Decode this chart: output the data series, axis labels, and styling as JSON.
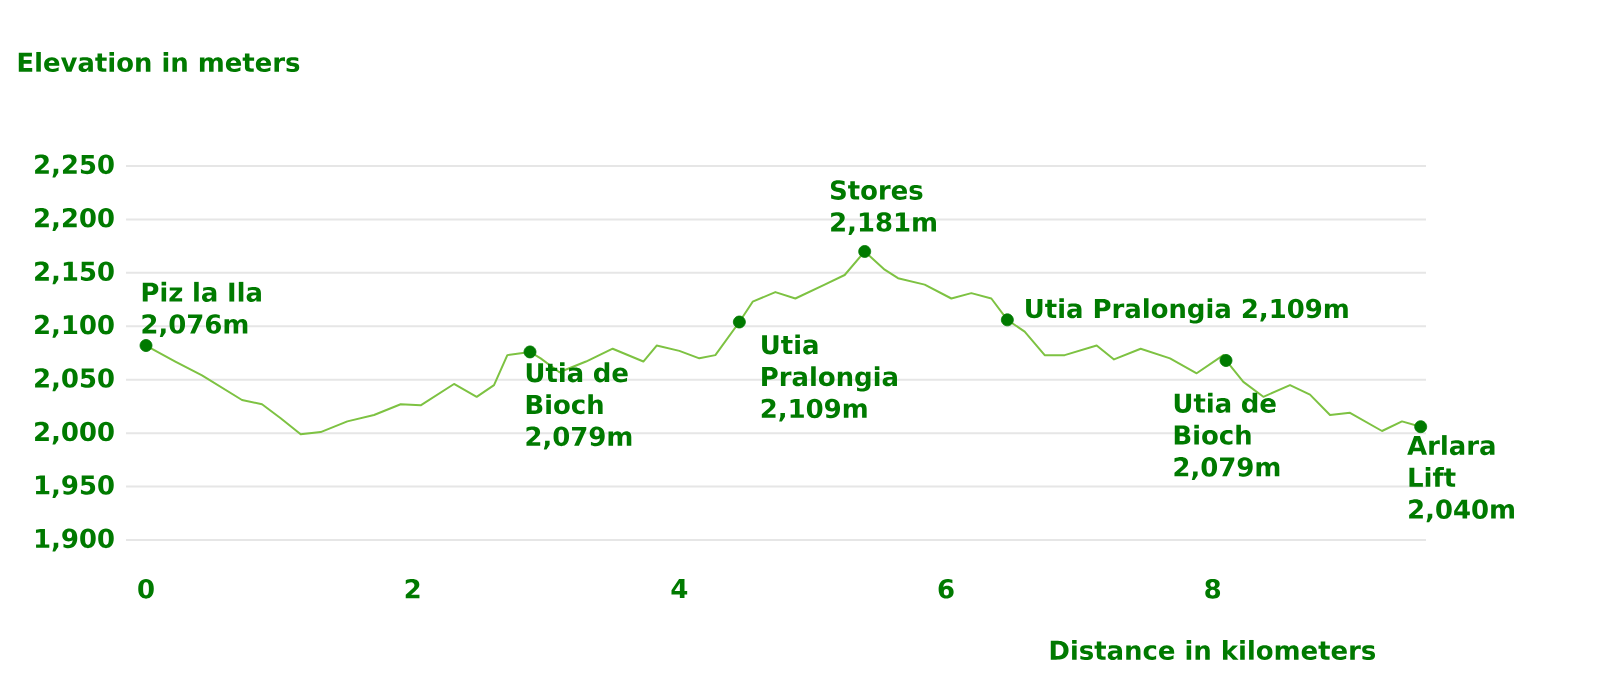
{
  "chart_data": {
    "type": "line",
    "xlabel": "Distance in kilometers",
    "ylabel": "Elevation in meters",
    "xlim": [
      -0.15,
      9.6
    ],
    "ylim": [
      1900,
      2250
    ],
    "xticks": [
      0,
      2,
      4,
      6,
      8
    ],
    "yticks": [
      {
        "value": 1900,
        "label": "1,900"
      },
      {
        "value": 1950,
        "label": "1,950"
      },
      {
        "value": 2000,
        "label": "2,000"
      },
      {
        "value": 2050,
        "label": "2,050"
      },
      {
        "value": 2100,
        "label": "2,100"
      },
      {
        "value": 2150,
        "label": "2,150"
      },
      {
        "value": 2200,
        "label": "2,200"
      },
      {
        "value": 2250,
        "label": "2,250"
      }
    ],
    "grid": "y",
    "series": [
      {
        "color": "#7dc242",
        "x": [
          0,
          0.22,
          0.42,
          0.72,
          0.87,
          1.01,
          1.16,
          1.31,
          1.51,
          1.71,
          1.91,
          2.06,
          2.31,
          2.48,
          2.61,
          2.71,
          2.88,
          2.96,
          3.1,
          3.3,
          3.5,
          3.73,
          3.83,
          4.0,
          4.15,
          4.27,
          4.45,
          4.55,
          4.72,
          4.87,
          5.09,
          5.24,
          5.39,
          5.54,
          5.64,
          5.84,
          6.04,
          6.19,
          6.34,
          6.46,
          6.59,
          6.74,
          6.89,
          7.13,
          7.26,
          7.46,
          7.68,
          7.88,
          8.08,
          8.1,
          8.23,
          8.38,
          8.58,
          8.73,
          8.88,
          9.03,
          9.27,
          9.42,
          9.56
        ],
        "values": [
          2082,
          2067,
          2054,
          2031,
          2027,
          2014,
          1999,
          2001,
          2011,
          2017,
          2027,
          2026,
          2046,
          2034,
          2045,
          2073,
          2076,
          2070,
          2057,
          2067,
          2079,
          2067,
          2082,
          2077,
          2070,
          2073,
          2104,
          2123,
          2132,
          2126,
          2139,
          2148,
          2170,
          2153,
          2145,
          2139,
          2126,
          2131,
          2126,
          2106,
          2095,
          2073,
          2073,
          2082,
          2069,
          2079,
          2070,
          2056,
          2073,
          2068,
          2048,
          2034,
          2045,
          2036,
          2017,
          2019,
          2002,
          2011,
          2006
        ]
      },
      {
        "type": "scatter",
        "color": "#007a00",
        "x": [
          0,
          2.88,
          4.45,
          5.39,
          6.46,
          8.1,
          9.56
        ],
        "values": [
          2082,
          2076,
          2104,
          2170,
          2106,
          2068,
          2006
        ]
      }
    ],
    "annotations": [
      {
        "text": "Piz la Ila 2,076m",
        "x": 0,
        "y": 2082
      },
      {
        "text": "Utia de Bioch 2,079m",
        "x": 2.88,
        "y": 2076
      },
      {
        "text": "Utia Pralongia 2,109m",
        "x": 4.45,
        "y": 2104
      },
      {
        "text": "Stores 2,181m",
        "x": 5.39,
        "y": 2170
      },
      {
        "text": "Utia Pralongia 2,109m",
        "x": 6.46,
        "y": 2106
      },
      {
        "text": "Utia de Bioch 2,079m",
        "x": 8.1,
        "y": 2068
      },
      {
        "text": "Arlara Lift 2,040m",
        "x": 9.56,
        "y": 2006
      }
    ]
  }
}
